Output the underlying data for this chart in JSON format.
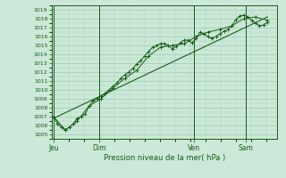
{
  "title": "",
  "xlabel": "Pression niveau de la mer( hPa )",
  "ylabel": "",
  "bg_color": "#cce8d8",
  "grid_color": "#99ccaa",
  "line_color": "#1a5c1a",
  "ylim": [
    1004.5,
    1019.5
  ],
  "xlim": [
    0,
    57
  ],
  "yticks": [
    1005,
    1006,
    1007,
    1008,
    1009,
    1010,
    1011,
    1012,
    1013,
    1014,
    1015,
    1016,
    1017,
    1018,
    1019
  ],
  "day_labels": [
    "Jeu",
    "Dim",
    "Ven",
    "Sam"
  ],
  "day_positions": [
    0.5,
    12,
    36,
    49
  ],
  "line1_x": [
    0.5,
    1.5,
    2.5,
    3.5,
    4.5,
    5.5,
    6.5,
    7.5,
    8.5,
    9.5,
    10.5,
    11.5,
    12.5,
    13.5,
    14.5,
    15.5,
    16.5,
    17.5,
    18.5,
    19.5,
    20.5,
    21.5,
    22.5,
    23.5,
    24.5,
    25.5,
    26.5,
    27.5,
    28.5,
    29.5,
    30.5,
    31.5,
    32.5,
    33.5,
    34.5,
    35.5,
    36.5,
    37.5,
    38.5,
    39.5,
    40.5,
    41.5,
    42.5,
    43.5,
    44.5,
    45.5,
    46.5,
    47.5,
    48.5,
    49.5,
    50.5,
    51.5,
    52.5,
    53.5,
    54.5
  ],
  "line1_y": [
    1007.0,
    1006.2,
    1005.8,
    1005.5,
    1005.8,
    1006.2,
    1006.8,
    1007.0,
    1007.3,
    1008.2,
    1008.8,
    1009.0,
    1009.3,
    1009.6,
    1010.0,
    1010.4,
    1010.8,
    1011.3,
    1011.7,
    1012.0,
    1012.4,
    1012.9,
    1013.3,
    1013.8,
    1014.3,
    1014.8,
    1015.0,
    1015.2,
    1015.2,
    1015.0,
    1014.6,
    1014.9,
    1015.3,
    1015.6,
    1015.6,
    1015.3,
    1015.8,
    1016.5,
    1016.3,
    1016.0,
    1015.8,
    1016.0,
    1016.3,
    1016.6,
    1016.8,
    1017.2,
    1017.9,
    1018.3,
    1018.4,
    1018.2,
    1017.8,
    1017.5,
    1017.2,
    1017.3,
    1017.6
  ],
  "line2_x": [
    0.5,
    3.5,
    6.5,
    9.5,
    12.5,
    15.5,
    18.5,
    21.5,
    24.5,
    27.5,
    30.5,
    33.5,
    36.5,
    39.5,
    42.5,
    45.5,
    48.5,
    51.5,
    54.5
  ],
  "line2_y": [
    1007.0,
    1005.5,
    1006.5,
    1008.2,
    1009.0,
    1010.2,
    1011.3,
    1012.2,
    1013.8,
    1014.8,
    1015.0,
    1015.2,
    1016.0,
    1016.5,
    1016.8,
    1017.2,
    1018.0,
    1018.2,
    1017.8
  ],
  "trend_x": [
    0.5,
    54.5
  ],
  "trend_y": [
    1006.8,
    1018.2
  ]
}
